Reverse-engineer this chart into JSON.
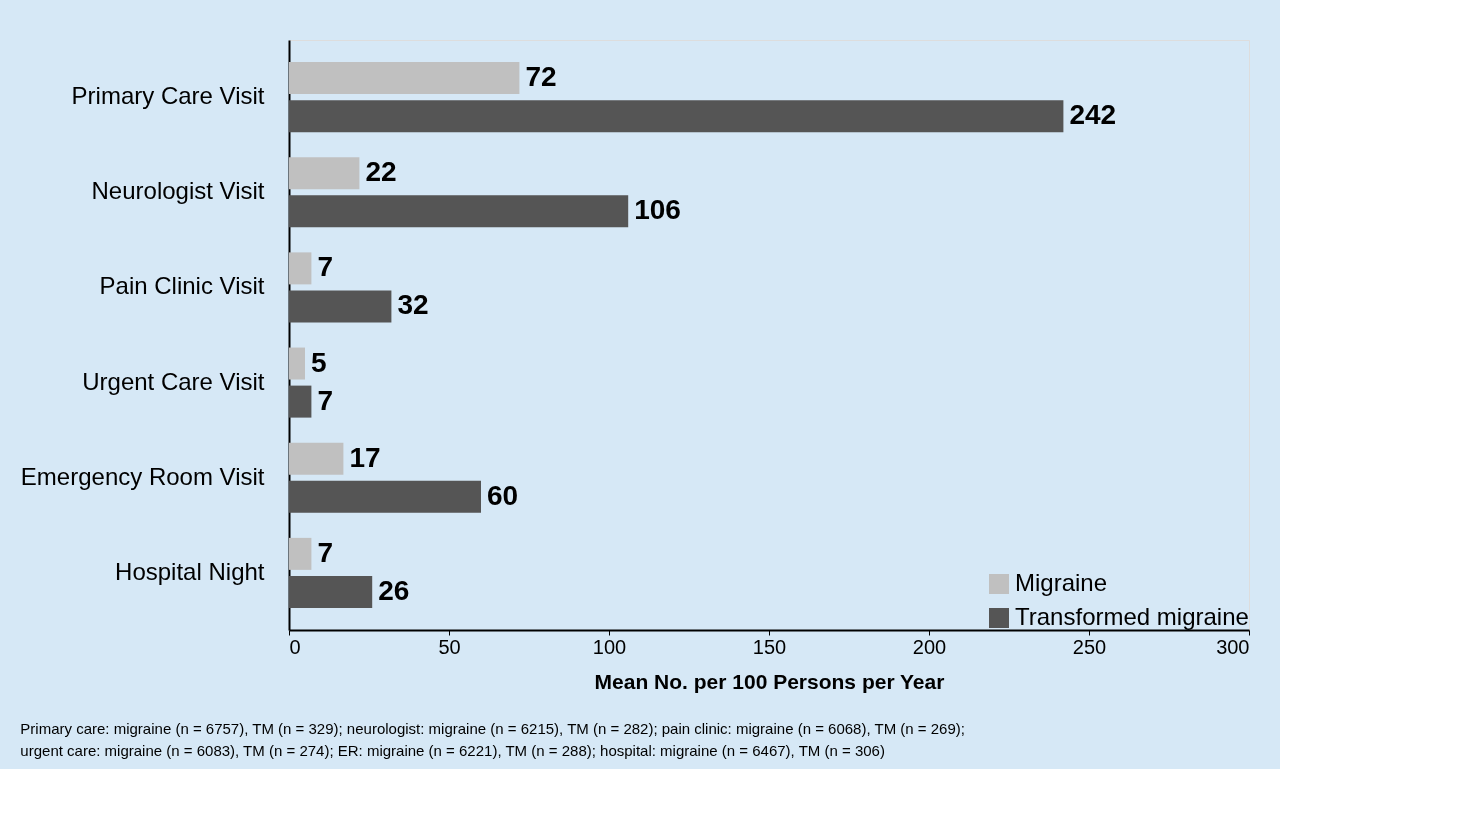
{
  "chart_data": {
    "type": "bar",
    "orientation": "horizontal",
    "xlabel": "Mean No. per 100 Persons per Year",
    "categories": [
      "Primary Care Visit",
      "Neurologist Visit",
      "Pain Clinic Visit",
      "Urgent Care Visit",
      "Emergency Room Visit",
      "Hospital Night"
    ],
    "series": [
      {
        "name": "Migraine",
        "color": "#c0c0c0",
        "values": [
          72,
          22,
          7,
          5,
          17,
          7
        ]
      },
      {
        "name": "Transformed migraine",
        "color": "#555555",
        "values": [
          242,
          106,
          32,
          7,
          60,
          26
        ]
      }
    ],
    "xlim": [
      0,
      300
    ],
    "xticks": [
      0,
      50,
      100,
      150,
      200,
      250,
      300
    ],
    "grid": false,
    "legend": "bottom right",
    "data_labels": true,
    "annotations": [
      "Primary care: migraine (n = 6757), TM (n = 329); neurologist: migraine (n = 6215), TM (n = 282); pain clinic: migraine (n = 6068), TM (n = 269);",
      "urgent care: migraine (n = 6083), TM (n = 274); ER: migraine (n = 6221), TM (n = 288); hospital: migraine (n = 6467), TM (n = 306)"
    ]
  }
}
